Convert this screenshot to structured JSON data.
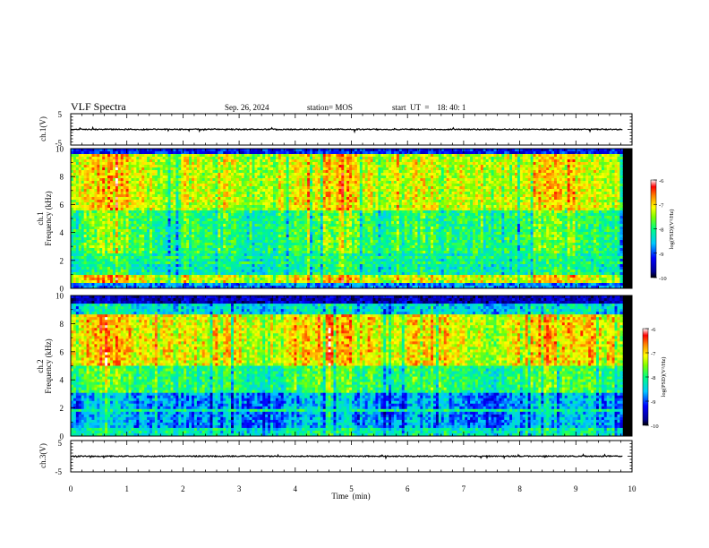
{
  "header": {
    "title": "VLF Spectra",
    "date": "Sep. 26, 2024",
    "station": "station= MOS",
    "start": "start  UT  =    18: 40: 1"
  },
  "chart_data": {
    "type": "heatmap",
    "x_axis": {
      "label": "Time  (min)",
      "ticks": [
        "0",
        "1",
        "2",
        "3",
        "4",
        "5",
        "6",
        "7",
        "8",
        "9",
        "10"
      ],
      "range": [
        0,
        10
      ],
      "data_end": 9.83
    },
    "panels": [
      {
        "id": "ch1-waveform",
        "type": "line",
        "ylabel": "ch.1(V)",
        "yticks": [
          "5",
          "-5"
        ],
        "ylim": [
          -5,
          5
        ],
        "baseline": 0
      },
      {
        "id": "ch1-spectrogram",
        "type": "heatmap",
        "ylabel_top": "ch.1",
        "ylabel": "Frequency  (kHz)",
        "yticks": [
          "0",
          "2",
          "4",
          "6",
          "8",
          "10"
        ],
        "ylim": [
          0,
          10
        ],
        "colorbar": {
          "ticks": [
            "-6",
            "-7",
            "-8",
            "-9",
            "-10"
          ],
          "range": [
            -10,
            -6
          ],
          "label": "log(PSD)(V²/Hz)"
        }
      },
      {
        "id": "ch2-spectrogram",
        "type": "heatmap",
        "ylabel_top": "ch.2",
        "ylabel": "Frequency  (kHz)",
        "yticks": [
          "0",
          "2",
          "4",
          "6",
          "8",
          "10"
        ],
        "ylim": [
          0,
          10
        ],
        "colorbar": {
          "ticks": [
            "-6",
            "-7",
            "-8",
            "-9",
            "-10"
          ],
          "range": [
            -10,
            -6
          ],
          "label": "log(PSD)(V²/Hz)"
        }
      },
      {
        "id": "ch3-waveform",
        "type": "line",
        "ylabel": "ch.3(V)",
        "yticks": [
          "5",
          "-5"
        ],
        "ylim": [
          -5,
          5
        ],
        "baseline": 0
      }
    ]
  }
}
